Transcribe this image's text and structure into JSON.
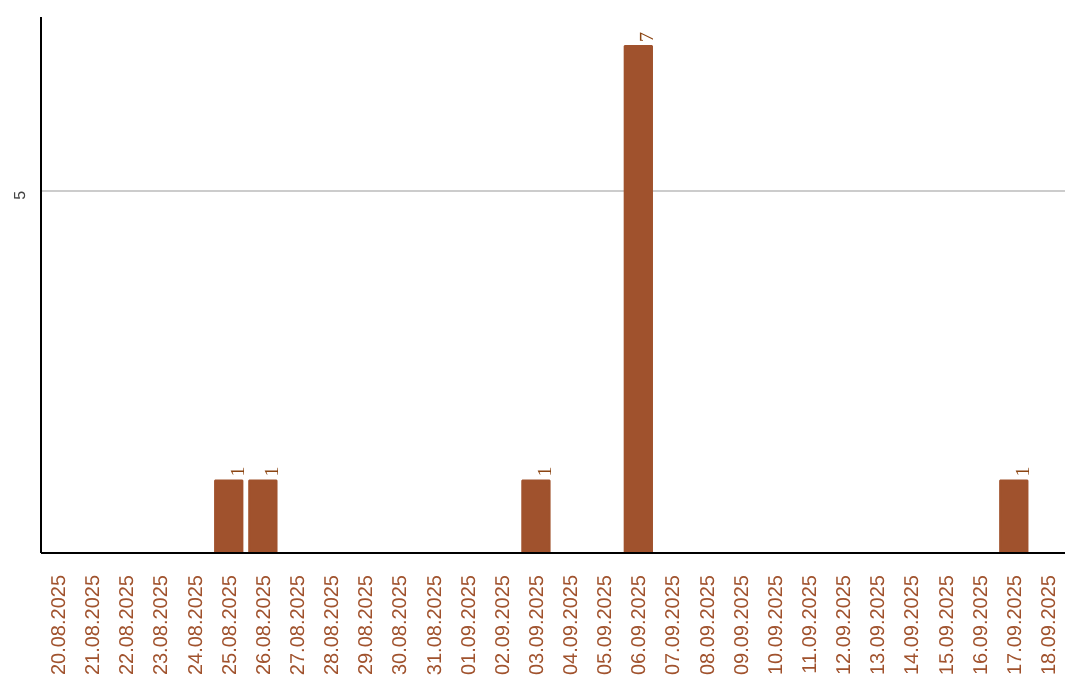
{
  "chart_data": {
    "type": "bar",
    "categories": [
      "20.08.2025",
      "21.08.2025",
      "22.08.2025",
      "23.08.2025",
      "24.08.2025",
      "25.08.2025",
      "26.08.2025",
      "27.08.2025",
      "28.08.2025",
      "29.08.2025",
      "30.08.2025",
      "31.08.2025",
      "01.09.2025",
      "02.09.2025",
      "03.09.2025",
      "04.09.2025",
      "05.09.2025",
      "06.09.2025",
      "07.09.2025",
      "08.09.2025",
      "09.09.2025",
      "10.09.2025",
      "11.09.2025",
      "12.09.2025",
      "13.09.2025",
      "14.09.2025",
      "15.09.2025",
      "16.09.2025",
      "17.09.2025",
      "18.09.2025"
    ],
    "values": [
      0,
      0,
      0,
      0,
      0,
      1,
      1,
      0,
      0,
      0,
      0,
      0,
      0,
      0,
      1,
      0,
      0,
      7,
      0,
      0,
      0,
      0,
      0,
      0,
      0,
      0,
      0,
      0,
      1,
      0
    ],
    "value_labels": [
      null,
      null,
      null,
      null,
      null,
      "1",
      "1",
      null,
      null,
      null,
      null,
      null,
      null,
      null,
      "1",
      null,
      null,
      "7",
      null,
      null,
      null,
      null,
      null,
      null,
      null,
      null,
      null,
      null,
      "1",
      null
    ],
    "color": "#a0522d",
    "ylim": [
      0,
      7.4
    ],
    "yticks": [
      5
    ],
    "grid": "y"
  }
}
